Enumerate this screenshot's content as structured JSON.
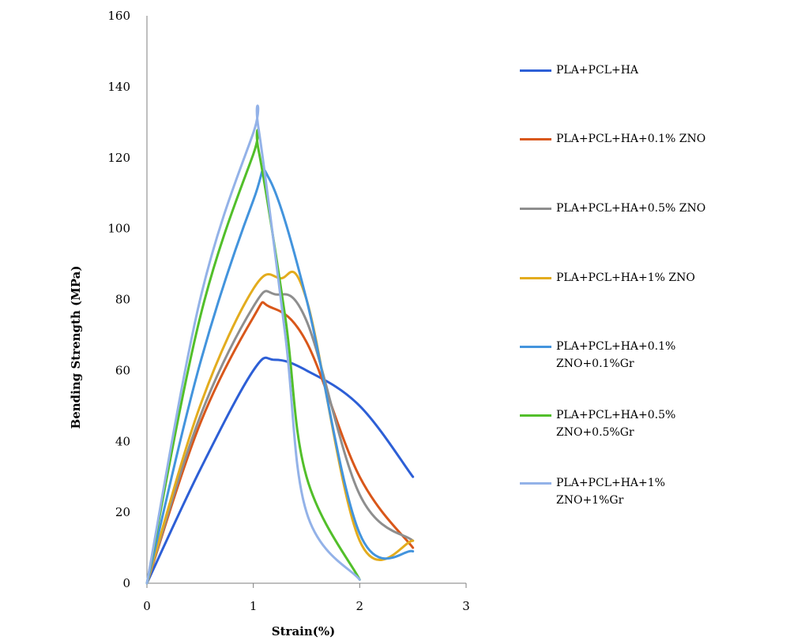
{
  "chart_data": {
    "type": "line",
    "xlabel": "Strain(%)",
    "ylabel": "Bending Strength (MPa)",
    "xlim": [
      0,
      3
    ],
    "ylim": [
      0,
      160
    ],
    "xticks": [
      0,
      1,
      2,
      3
    ],
    "yticks": [
      0,
      20,
      40,
      60,
      80,
      100,
      120,
      140,
      160
    ],
    "legend_position": "right",
    "grid": false,
    "series": [
      {
        "name": "PLA+PCL+HA",
        "color": "#2d5fd6",
        "points": [
          [
            0,
            0
          ],
          [
            0.5,
            32
          ],
          [
            1,
            60
          ],
          [
            1.2,
            63
          ],
          [
            1.5,
            60
          ],
          [
            2,
            50
          ],
          [
            2.5,
            30
          ]
        ]
      },
      {
        "name": "PLA+PCL+HA+0.1% ZNO",
        "color": "#d9571a",
        "points": [
          [
            0,
            0
          ],
          [
            0.5,
            45
          ],
          [
            1,
            75
          ],
          [
            1.15,
            78
          ],
          [
            1.5,
            68
          ],
          [
            2,
            30
          ],
          [
            2.5,
            10
          ]
        ]
      },
      {
        "name": "PLA+PCL+HA+0.5% ZNO",
        "color": "#8e8e8e",
        "points": [
          [
            0,
            0
          ],
          [
            0.5,
            47
          ],
          [
            1,
            78
          ],
          [
            1.2,
            81.5
          ],
          [
            1.5,
            74
          ],
          [
            2,
            25
          ],
          [
            2.5,
            12
          ]
        ]
      },
      {
        "name": "PLA+PCL+HA+1% ZNO",
        "color": "#e3ac1e",
        "points": [
          [
            0,
            0
          ],
          [
            0.5,
            50
          ],
          [
            1,
            83
          ],
          [
            1.25,
            86
          ],
          [
            1.5,
            80
          ],
          [
            2,
            12
          ],
          [
            2.5,
            12
          ]
        ]
      },
      {
        "name": "PLA+PCL+HA+0.1% ZNO+0.1%Gr",
        "color": "#4394dd",
        "points": [
          [
            0,
            0
          ],
          [
            0.5,
            62
          ],
          [
            1,
            108
          ],
          [
            1.15,
            114
          ],
          [
            1.5,
            80
          ],
          [
            2,
            14
          ],
          [
            2.5,
            9
          ]
        ]
      },
      {
        "name": "PLA+PCL+HA+0.5% ZNO+0.5%Gr",
        "color": "#52bf2a",
        "points": [
          [
            0,
            0
          ],
          [
            0.5,
            75
          ],
          [
            1,
            121
          ],
          [
            1.05,
            122
          ],
          [
            1.3,
            75
          ],
          [
            1.5,
            30
          ],
          [
            2,
            1
          ]
        ]
      },
      {
        "name": "PLA+PCL+HA+1% ZNO+1%Gr",
        "color": "#93b2e8",
        "points": [
          [
            0,
            0
          ],
          [
            0.5,
            80
          ],
          [
            1,
            127
          ],
          [
            1.05,
            128
          ],
          [
            1.3,
            70
          ],
          [
            1.5,
            20
          ],
          [
            2,
            1
          ]
        ]
      }
    ]
  }
}
